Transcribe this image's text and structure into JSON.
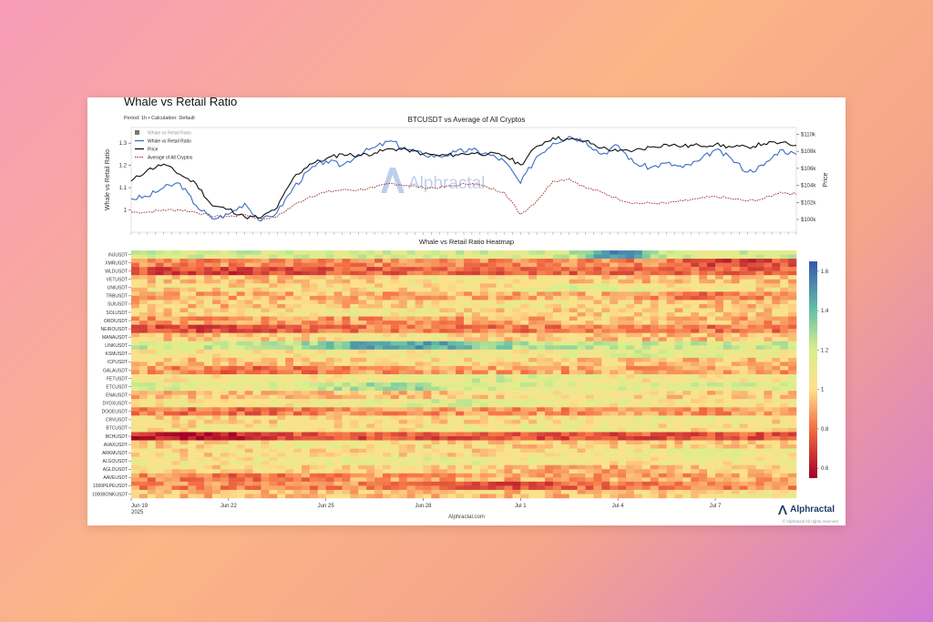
{
  "page": {
    "title": "Whale vs Retail Ratio",
    "subtitle": "Period: 1h • Calculation: Default",
    "footer": "Alphractal.com",
    "copyright": "© Alphractal All rights reserved",
    "brand": "Alphractal",
    "watermark": "Alphractal"
  },
  "colors": {
    "whale_line": "#3a6bc4",
    "price_line": "#111111",
    "avg_line": "#a02828",
    "background_card": "#ffffff"
  },
  "chart_data": [
    {
      "type": "line",
      "title": "BTCUSDT vs Average of All Cryptos",
      "ylabel_left": "Whale vs Retail Ratio",
      "ylabel_right": "Price",
      "ylim_left": [
        0.9,
        1.37
      ],
      "yticks_left": [
        "1",
        "1.1",
        "1.2",
        "1.3"
      ],
      "ylim_right": [
        98500,
        110800
      ],
      "yticks_right": [
        "$100k",
        "$102k",
        "$104k",
        "$106k",
        "$108k",
        "$110k"
      ],
      "xlim": [
        0,
        20.5
      ],
      "legend": {
        "placement": "top-left",
        "entries": [
          "Whale vs Retail Ratio",
          "Whale vs Retail Ratio",
          "Price",
          "Average of All Cryptos"
        ]
      },
      "series": [
        {
          "name": "Whale vs Retail Ratio",
          "axis": "left",
          "x": [
            0,
            0.5,
            1,
            1.5,
            2,
            2.5,
            3,
            3.5,
            4,
            4.5,
            5,
            5.5,
            6,
            6.5,
            7,
            7.5,
            8,
            8.5,
            9,
            9.5,
            10,
            10.5,
            11,
            11.5,
            12,
            12.5,
            13,
            13.5,
            14,
            14.5,
            15,
            15.5,
            16,
            16.5,
            17,
            17.5,
            18,
            18.5,
            19,
            19.5,
            20,
            20.5
          ],
          "values": [
            1.05,
            1.06,
            1.1,
            1.12,
            1.02,
            0.96,
            0.98,
            1.03,
            0.95,
            0.99,
            1.1,
            1.18,
            1.22,
            1.2,
            1.25,
            1.28,
            1.31,
            1.27,
            1.25,
            1.24,
            1.26,
            1.27,
            1.25,
            1.22,
            1.12,
            1.24,
            1.3,
            1.33,
            1.31,
            1.25,
            1.29,
            1.21,
            1.19,
            1.21,
            1.19,
            1.22,
            1.27,
            1.23,
            1.17,
            1.2,
            1.27,
            1.25
          ]
        },
        {
          "name": "Price",
          "axis": "right",
          "x": [
            0,
            0.5,
            1,
            1.5,
            2,
            2.5,
            3,
            3.5,
            4,
            4.5,
            5,
            5.5,
            6,
            6.5,
            7,
            7.5,
            8,
            8.5,
            9,
            9.5,
            10,
            10.5,
            11,
            11.5,
            12,
            12.5,
            13,
            13.5,
            14,
            14.5,
            15,
            15.5,
            16,
            16.5,
            17,
            17.5,
            18,
            18.5,
            19,
            19.5,
            20,
            20.5
          ],
          "values": [
            104500,
            105800,
            106500,
            105300,
            104200,
            101600,
            101200,
            100300,
            100200,
            101400,
            104900,
            106500,
            107100,
            107700,
            107500,
            107800,
            108300,
            108200,
            107700,
            107500,
            107600,
            107800,
            107700,
            107500,
            106400,
            108600,
            109600,
            109400,
            109200,
            108400,
            108000,
            108100,
            108500,
            108800,
            108600,
            108700,
            108800,
            108500,
            108500,
            108900,
            109000,
            108700
          ]
        },
        {
          "name": "Average of All Cryptos",
          "axis": "left",
          "x": [
            0,
            0.5,
            1,
            1.5,
            2,
            2.5,
            3,
            3.5,
            4,
            4.5,
            5,
            5.5,
            6,
            6.5,
            7,
            7.5,
            8,
            8.5,
            9,
            9.5,
            10,
            10.5,
            11,
            11.5,
            12,
            12.5,
            13,
            13.5,
            14,
            14.5,
            15,
            15.5,
            16,
            16.5,
            17,
            17.5,
            18,
            18.5,
            19,
            19.5,
            20,
            20.5
          ],
          "values": [
            0.99,
            0.99,
            1.0,
            1.0,
            0.99,
            0.97,
            0.97,
            0.98,
            0.96,
            0.97,
            1.02,
            1.06,
            1.08,
            1.09,
            1.09,
            1.1,
            1.12,
            1.11,
            1.1,
            1.1,
            1.11,
            1.12,
            1.1,
            1.08,
            0.98,
            1.04,
            1.13,
            1.14,
            1.1,
            1.08,
            1.05,
            1.03,
            1.03,
            1.03,
            1.04,
            1.05,
            1.06,
            1.05,
            1.04,
            1.05,
            1.08,
            1.07
          ]
        }
      ]
    },
    {
      "type": "heatmap",
      "title": "Whale vs Retail Ratio Heatmap",
      "rows": [
        "INJUSDT",
        "XMRUSDT",
        "WLDUSDT",
        "VETUSDT",
        "UNIUSDT",
        "TRBUSDT",
        "SUIUSDT",
        "SOLUSDT",
        "ORDIUSDT",
        "NEIROUSDT",
        "MANAUSDT",
        "LINKUSDT",
        "KSMUSDT",
        "ICPUSDT",
        "GALAUSDT",
        "FETUSDT",
        "ETCUSDT",
        "ENAUSDT",
        "DYDXUSDT",
        "DOGEUSDT",
        "CRVUSDT",
        "BTCUSDT",
        "BCHUSDT",
        "AVAXUSDT",
        "ARKMUSDT",
        "ALGOUSDT",
        "AGLDUSDT",
        "AAVEUSDT",
        "1000PEPEUSDT",
        "1000BONKUSDT"
      ],
      "x_ticks": [
        {
          "label": "Jun 19",
          "sublabel": "2025",
          "pos": 0
        },
        {
          "label": "Jun 22",
          "pos": 3
        },
        {
          "label": "Jun 25",
          "pos": 6
        },
        {
          "label": "Jun 28",
          "pos": 9
        },
        {
          "label": "Jul 1",
          "pos": 12
        },
        {
          "label": "Jul 4",
          "pos": 15
        },
        {
          "label": "Jul 7",
          "pos": 18
        }
      ],
      "xlim": [
        0,
        20.5
      ],
      "colorscale": {
        "min": 0.55,
        "max": 1.65,
        "ticks": [
          "0.6",
          "0.8",
          "1",
          "1.2",
          "1.4",
          "1.6"
        ],
        "stops": [
          {
            "v": 0.55,
            "c": "#a50026"
          },
          {
            "v": 0.8,
            "c": "#f46d43"
          },
          {
            "v": 1.0,
            "c": "#fee08b"
          },
          {
            "v": 1.2,
            "c": "#d9ef8b"
          },
          {
            "v": 1.4,
            "c": "#66c2a5"
          },
          {
            "v": 1.65,
            "c": "#3558b0"
          }
        ]
      },
      "row_profiles": [
        {
          "base": 1.18,
          "spots": [
            [
              15,
              1,
              0.35
            ]
          ]
        },
        {
          "base": 0.85,
          "spots": [
            [
              19,
              2,
              -0.15
            ]
          ]
        },
        {
          "base": 0.78,
          "spots": [
            [
              3,
              3,
              -0.08
            ]
          ]
        },
        {
          "base": 0.95,
          "spots": [
            [
              10,
              3,
              0.1
            ]
          ]
        },
        {
          "base": 1.0,
          "spots": [
            [
              14,
              2,
              0.15
            ]
          ]
        },
        {
          "base": 0.92,
          "spots": [
            [
              18,
              2,
              -0.1
            ]
          ]
        },
        {
          "base": 0.95,
          "spots": [
            [
              12,
              3,
              0.1
            ]
          ]
        },
        {
          "base": 0.98,
          "spots": [
            [
              7,
              3,
              0.1
            ]
          ]
        },
        {
          "base": 0.88,
          "spots": [
            [
              15,
              3,
              0.1
            ]
          ]
        },
        {
          "base": 0.82,
          "spots": [
            [
              2,
              3,
              -0.1
            ]
          ]
        },
        {
          "base": 0.95,
          "spots": [
            [
              8,
              3,
              0.1
            ]
          ]
        },
        {
          "base": 1.2,
          "spots": [
            [
              8.5,
              3,
              0.28
            ]
          ]
        },
        {
          "base": 1.05,
          "spots": [
            [
              16,
              3,
              0.1
            ]
          ]
        },
        {
          "base": 0.95,
          "spots": [
            [
              10,
              3,
              0.08
            ]
          ]
        },
        {
          "base": 0.9,
          "spots": [
            [
              4,
              3,
              -0.1
            ]
          ]
        },
        {
          "base": 1.05,
          "spots": [
            [
              11,
              3,
              0.12
            ]
          ]
        },
        {
          "base": 1.15,
          "spots": [
            [
              8,
              2,
              0.15
            ]
          ]
        },
        {
          "base": 0.95,
          "spots": [
            [
              14,
              3,
              0.1
            ]
          ]
        },
        {
          "base": 1.05,
          "spots": [
            [
              10,
              3,
              0.12
            ]
          ]
        },
        {
          "base": 0.88,
          "spots": [
            [
              3,
              3,
              -0.08
            ]
          ]
        },
        {
          "base": 1.0,
          "spots": [
            [
              16,
              3,
              0.1
            ]
          ]
        },
        {
          "base": 1.02,
          "spots": [
            [
              12,
              3,
              0.08
            ]
          ]
        },
        {
          "base": 0.75,
          "spots": [
            [
              1.5,
              2.2,
              -0.17
            ]
          ]
        },
        {
          "base": 0.98,
          "spots": [
            [
              6,
              3,
              0.1
            ]
          ]
        },
        {
          "base": 1.0,
          "spots": [
            [
              18,
              3,
              0.12
            ]
          ]
        },
        {
          "base": 1.05,
          "spots": [
            [
              9,
              3,
              0.1
            ]
          ]
        },
        {
          "base": 1.0,
          "spots": [
            [
              14,
              3,
              -0.08
            ]
          ]
        },
        {
          "base": 0.9,
          "spots": [
            [
              3,
              3,
              -0.1
            ]
          ]
        },
        {
          "base": 0.85,
          "spots": [
            [
              12,
              2,
              -0.12
            ]
          ]
        },
        {
          "base": 0.95,
          "spots": [
            [
              20,
              3,
              0.1
            ]
          ]
        }
      ]
    }
  ]
}
